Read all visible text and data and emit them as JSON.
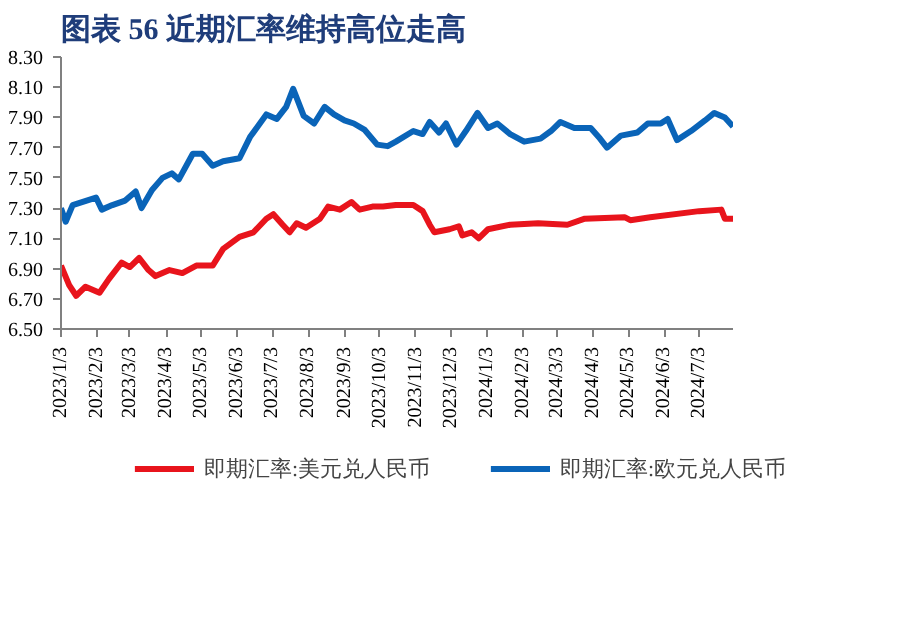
{
  "chart_data": {
    "type": "line",
    "title": "图表 56  近期汇率维持高位走高",
    "x": [
      "2023-01-03",
      "2023-01-10",
      "2023-01-16",
      "2023-01-24",
      "2023-02-05",
      "2023-02-13",
      "2023-02-24",
      "2023-03-03",
      "2023-03-11",
      "2023-03-19",
      "2023-03-25",
      "2023-04-06",
      "2023-04-17",
      "2023-04-29",
      "2023-05-13",
      "2023-05-22",
      "2023-06-05",
      "2023-06-17",
      "2023-06-28",
      "2023-07-04",
      "2023-07-12",
      "2023-07-18",
      "2023-07-24",
      "2023-08-01",
      "2023-08-13",
      "2023-08-20",
      "2023-08-30",
      "2023-09-09",
      "2023-09-16",
      "2023-09-27",
      "2023-10-06",
      "2023-10-17",
      "2023-11-01",
      "2023-11-09",
      "2023-11-15",
      "2023-11-19",
      "2023-12-02",
      "2023-12-10",
      "2023-12-13",
      "2023-12-21",
      "2023-12-27",
      "2024-01-04",
      "2024-01-23",
      "2024-02-16",
      "2024-03-12",
      "2024-03-27",
      "2024-04-30",
      "2024-05-05",
      "2024-05-22",
      "2024-07-03",
      "2024-07-22",
      "2024-07-25",
      "2024-08-01"
    ],
    "series": [
      {
        "name": "即期汇率:美元兑人民币",
        "color": "#e8141c",
        "values": [
          6.92,
          6.79,
          6.72,
          6.78,
          6.74,
          6.83,
          6.94,
          6.91,
          6.97,
          6.89,
          6.85,
          6.89,
          6.87,
          6.92,
          6.92,
          7.03,
          7.11,
          7.14,
          7.23,
          7.26,
          7.19,
          7.14,
          7.2,
          7.17,
          7.23,
          7.31,
          7.29,
          7.34,
          7.29,
          7.31,
          7.31,
          7.32,
          7.32,
          7.28,
          7.19,
          7.14,
          7.16,
          7.18,
          7.12,
          7.14,
          7.1,
          7.16,
          7.19,
          7.2,
          7.19,
          7.23,
          7.24,
          7.22,
          7.24,
          7.28,
          7.29,
          7.23,
          7.23
        ]
      },
      {
        "name": "即期汇率:欧元兑人民币",
        "color": "#0a64b8",
        "x": [
          "2023-01-03",
          "2023-01-07",
          "2023-01-13",
          "2023-01-21",
          "2023-02-02",
          "2023-02-07",
          "2023-02-16",
          "2023-02-27",
          "2023-03-08",
          "2023-03-13",
          "2023-03-22",
          "2023-03-31",
          "2023-04-08",
          "2023-04-14",
          "2023-04-26",
          "2023-05-04",
          "2023-05-13",
          "2023-05-22",
          "2023-06-05",
          "2023-06-14",
          "2023-06-28",
          "2023-07-07",
          "2023-07-15",
          "2023-07-21",
          "2023-07-30",
          "2023-08-08",
          "2023-08-17",
          "2023-08-25",
          "2023-09-03",
          "2023-09-11",
          "2023-09-20",
          "2023-10-01",
          "2023-10-10",
          "2023-10-17",
          "2023-11-01",
          "2023-11-09",
          "2023-11-15",
          "2023-11-23",
          "2023-11-29",
          "2023-12-08",
          "2023-12-16",
          "2023-12-26",
          "2024-01-04",
          "2024-01-12",
          "2024-01-23",
          "2024-02-04",
          "2024-02-18",
          "2024-02-27",
          "2024-03-06",
          "2024-03-18",
          "2024-04-01",
          "2024-04-09",
          "2024-04-15",
          "2024-04-27",
          "2024-05-11",
          "2024-05-20",
          "2024-05-31",
          "2024-06-06",
          "2024-06-14",
          "2024-06-26",
          "2024-07-08",
          "2024-07-16",
          "2024-07-25",
          "2024-08-01"
        ],
        "values": [
          7.3,
          7.21,
          7.32,
          7.34,
          7.37,
          7.29,
          7.32,
          7.35,
          7.41,
          7.3,
          7.42,
          7.5,
          7.53,
          7.49,
          7.66,
          7.66,
          7.58,
          7.61,
          7.63,
          7.77,
          7.92,
          7.89,
          7.97,
          8.09,
          7.91,
          7.86,
          7.97,
          7.92,
          7.88,
          7.86,
          7.82,
          7.72,
          7.71,
          7.74,
          7.81,
          7.79,
          7.87,
          7.8,
          7.86,
          7.72,
          7.81,
          7.93,
          7.83,
          7.86,
          7.79,
          7.74,
          7.76,
          7.81,
          7.87,
          7.83,
          7.83,
          7.76,
          7.7,
          7.78,
          7.8,
          7.86,
          7.86,
          7.89,
          7.75,
          7.81,
          7.88,
          7.93,
          7.9,
          7.84
        ]
      }
    ],
    "xlim": [
      "2023-01-03",
      "2024-08-01"
    ],
    "xticks": [
      {
        "value": "2023-01-03",
        "label": "2023/1/3"
      },
      {
        "value": "2023-02-03",
        "label": "2023/2/3"
      },
      {
        "value": "2023-03-03",
        "label": "2023/3/3"
      },
      {
        "value": "2023-04-03",
        "label": "2023/4/3"
      },
      {
        "value": "2023-05-03",
        "label": "2023/5/3"
      },
      {
        "value": "2023-06-03",
        "label": "2023/6/3"
      },
      {
        "value": "2023-07-03",
        "label": "2023/7/3"
      },
      {
        "value": "2023-08-03",
        "label": "2023/8/3"
      },
      {
        "value": "2023-09-03",
        "label": "2023/9/3"
      },
      {
        "value": "2023-10-03",
        "label": "2023/10/3"
      },
      {
        "value": "2023-11-03",
        "label": "2023/11/3"
      },
      {
        "value": "2023-12-03",
        "label": "2023/12/3"
      },
      {
        "value": "2024-01-03",
        "label": "2024/1/3"
      },
      {
        "value": "2024-02-03",
        "label": "2024/2/3"
      },
      {
        "value": "2024-03-03",
        "label": "2024/3/3"
      },
      {
        "value": "2024-04-03",
        "label": "2024/4/3"
      },
      {
        "value": "2024-05-03",
        "label": "2024/5/3"
      },
      {
        "value": "2024-06-03",
        "label": "2024/6/3"
      },
      {
        "value": "2024-07-03",
        "label": "2024/7/3"
      }
    ],
    "ylim": [
      6.5,
      8.3
    ],
    "yticks": [
      {
        "value": 6.5,
        "label": "6.50"
      },
      {
        "value": 6.7,
        "label": "6.70"
      },
      {
        "value": 6.9,
        "label": "6.90"
      },
      {
        "value": 7.1,
        "label": "7.10"
      },
      {
        "value": 7.3,
        "label": "7.30"
      },
      {
        "value": 7.5,
        "label": "7.50"
      },
      {
        "value": 7.7,
        "label": "7.70"
      },
      {
        "value": 7.9,
        "label": "7.90"
      },
      {
        "value": 8.1,
        "label": "8.10"
      },
      {
        "value": 8.3,
        "label": "8.30"
      }
    ],
    "grid": false,
    "legend": "bottom",
    "marker": "none",
    "line_style": "solid"
  }
}
